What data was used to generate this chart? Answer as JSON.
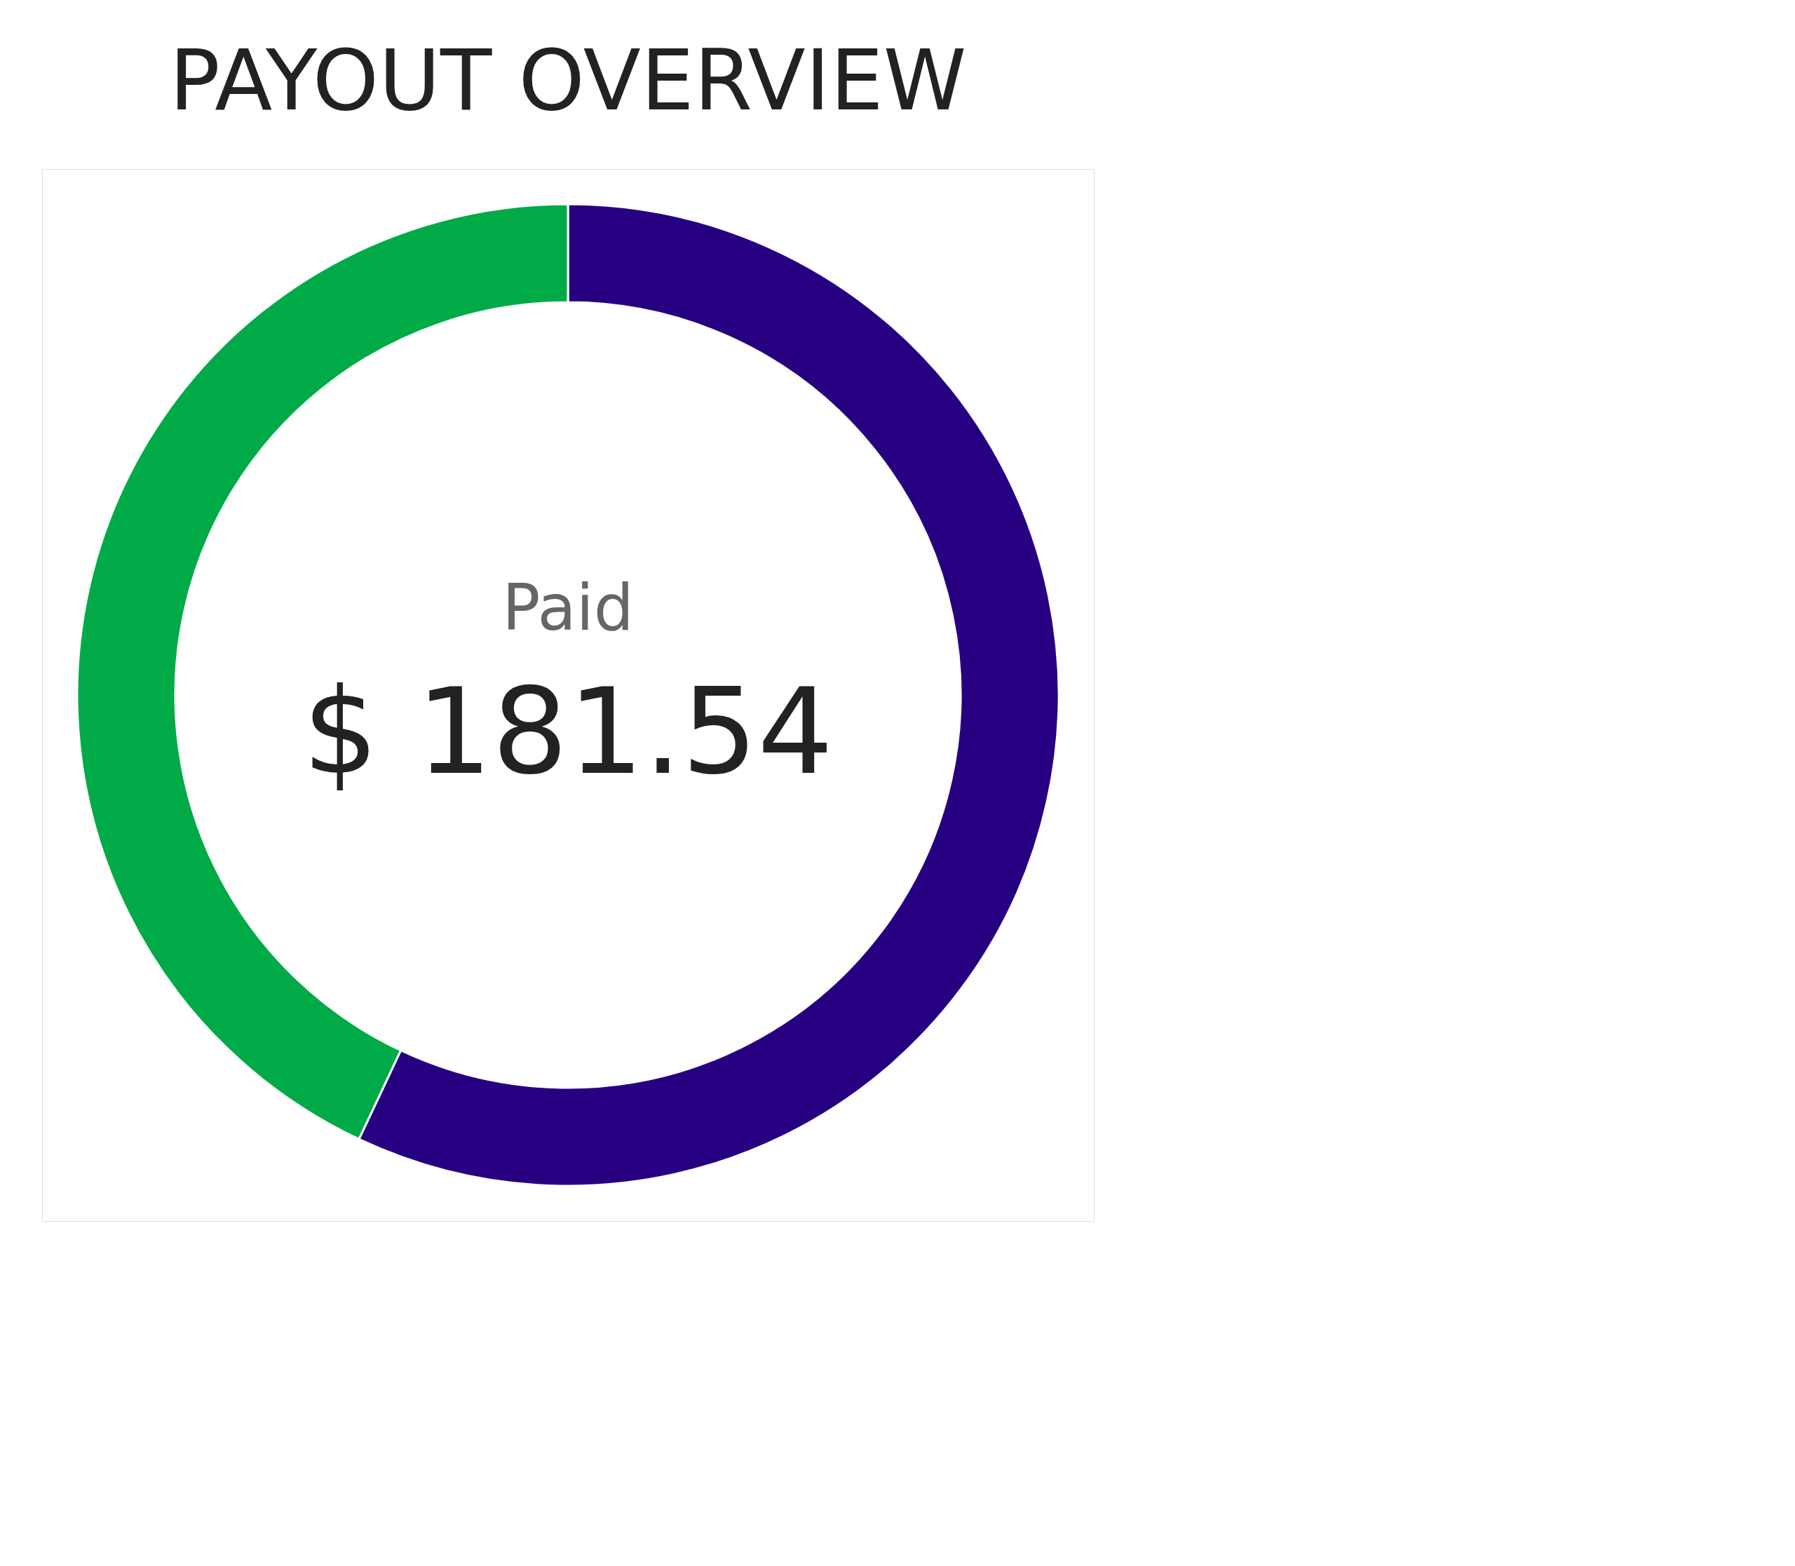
{
  "chart_data": {
    "type": "donut",
    "title": "PAYOUT OVERVIEW",
    "categories": [
      null,
      null
    ],
    "values": [
      57,
      43
    ],
    "colors": [
      "#270082",
      "#00ab47"
    ],
    "annotations": [
      "Paid",
      "$ 181.54"
    ]
  }
}
